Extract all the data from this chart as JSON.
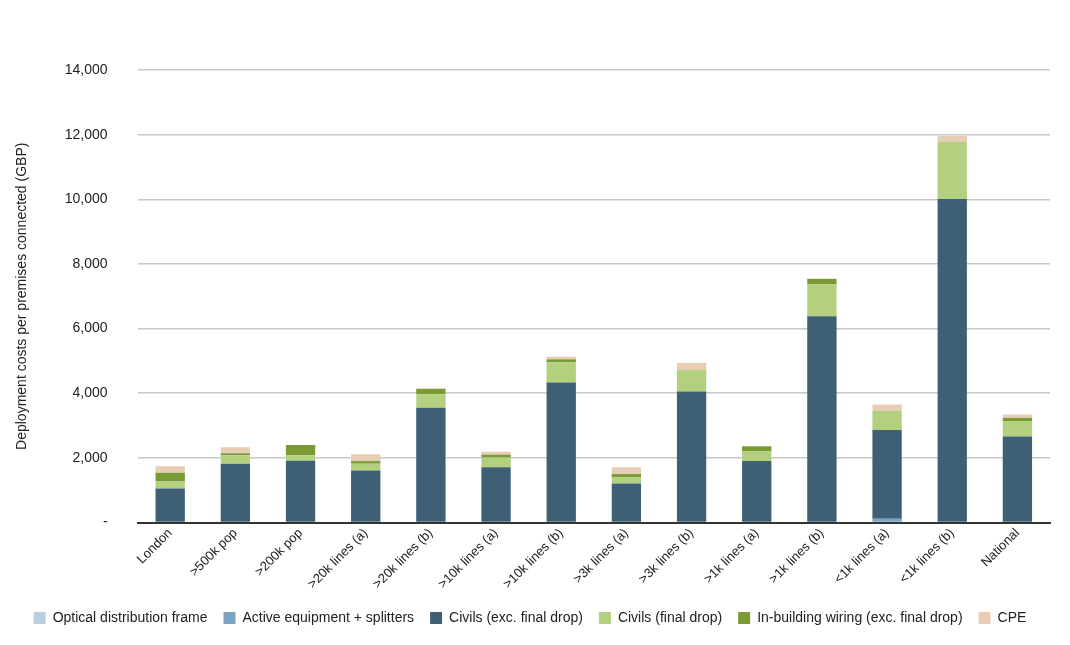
{
  "chart_data": {
    "type": "bar",
    "stacked": true,
    "ylabel": "Deployment costs per premises connected (GBP)",
    "categories": [
      "London",
      ">500k pop",
      ">200k pop",
      ">20k lines (a)",
      ">20k lines (b)",
      ">10k lines (a)",
      ">10k lines (b)",
      ">3k lines (a)",
      ">3k lines (b)",
      ">1k lines (a)",
      ">1k lines (b)",
      "<1k lines (a)",
      "<1k lines (b)",
      "National"
    ],
    "series": [
      {
        "name": "Optical distribution frame",
        "color": "#b8cfe0",
        "values": [
          0,
          0,
          0,
          0,
          0,
          0,
          0,
          0,
          0,
          0,
          0,
          0,
          0,
          0
        ]
      },
      {
        "name": "Active equipment + splitters",
        "color": "#7ba3c2",
        "values": [
          0,
          0,
          0,
          0,
          0,
          0,
          0,
          0,
          0,
          0,
          0,
          120,
          0,
          0
        ]
      },
      {
        "name": "Civils (exc. final drop)",
        "color": "#3f5f75",
        "values": [
          1050,
          1820,
          1910,
          1610,
          3550,
          1710,
          4330,
          1210,
          4050,
          1900,
          6380,
          2740,
          10010,
          2660
        ]
      },
      {
        "name": "Civils (final drop)",
        "color": "#b3d07f",
        "values": [
          220,
          260,
          170,
          210,
          420,
          300,
          630,
          200,
          670,
          300,
          990,
          590,
          1770,
          480
        ]
      },
      {
        "name": "In-building wiring (exc. final drop)",
        "color": "#7a9a34",
        "values": [
          270,
          60,
          320,
          80,
          170,
          90,
          90,
          90,
          0,
          160,
          170,
          0,
          0,
          100
        ]
      },
      {
        "name": "CPE",
        "color": "#e8cdb4",
        "values": [
          200,
          190,
          0,
          210,
          0,
          90,
          80,
          210,
          220,
          0,
          0,
          200,
          180,
          100
        ]
      }
    ],
    "ylim": [
      0,
      14000
    ],
    "yticks": [
      {
        "value": 0,
        "label": "-"
      },
      {
        "value": 2000,
        "label": "2,000"
      },
      {
        "value": 4000,
        "label": "4,000"
      },
      {
        "value": 6000,
        "label": "6,000"
      },
      {
        "value": 8000,
        "label": "8,000"
      },
      {
        "value": 10000,
        "label": "10,000"
      },
      {
        "value": 12000,
        "label": "12,000"
      },
      {
        "value": 14000,
        "label": "14,000"
      }
    ],
    "grid": "y",
    "legend": "bottom"
  }
}
